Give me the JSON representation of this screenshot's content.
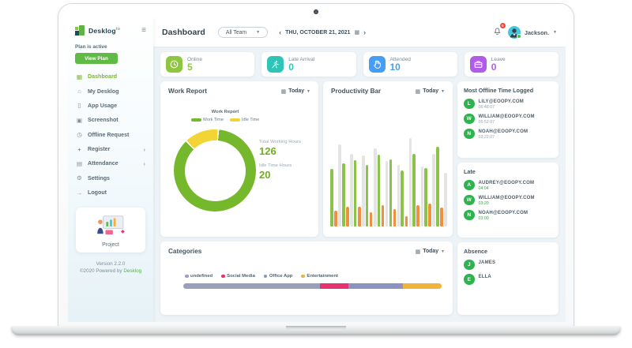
{
  "colors": {
    "app_background": "#edf3f6",
    "card_background": "#ffffff",
    "accent_green": "#7cb82e",
    "button_green": "#5fba46",
    "avatar_green": "#2fb34f",
    "badge_red": "#e84a42",
    "avatar_cyan": "#45c7dd"
  },
  "sidebar": {
    "logo": {
      "name": "Desklog",
      "suffix": "io"
    },
    "plan_status": "Plan is active",
    "view_plan_label": "View Plan",
    "items": [
      {
        "label": "Dashboard",
        "icon": "dashboard-icon",
        "active": true,
        "has_submenu": false
      },
      {
        "label": "My Desklog",
        "icon": "home-icon",
        "active": false,
        "has_submenu": false
      },
      {
        "label": "App Usage",
        "icon": "app-usage-icon",
        "active": false,
        "has_submenu": false
      },
      {
        "label": "Screenshot",
        "icon": "screenshot-icon",
        "active": false,
        "has_submenu": false
      },
      {
        "label": "Offline Request",
        "icon": "offline-request-icon",
        "active": false,
        "has_submenu": false
      },
      {
        "label": "Register",
        "icon": "register-icon",
        "active": false,
        "has_submenu": true
      },
      {
        "label": "Attendance",
        "icon": "attendance-icon",
        "active": false,
        "has_submenu": true
      },
      {
        "label": "Settings",
        "icon": "settings-icon",
        "active": false,
        "has_submenu": false
      },
      {
        "label": "Logout",
        "icon": "logout-icon",
        "active": false,
        "has_submenu": false
      }
    ],
    "project_label": "Project",
    "version": "Version 2.2.0",
    "copyright_prefix": "©2020 Powered by",
    "copyright_brand": "Desklog"
  },
  "header": {
    "title": "Dashboard",
    "team_selector": "All Team",
    "date": "THU, OCTOBER 21, 2021",
    "notification_count": "0",
    "user_name": "Jackson."
  },
  "stats": [
    {
      "label": "Online",
      "value": "5",
      "color": "#8dc63f",
      "icon": "clock-icon"
    },
    {
      "label": "Late Arrival",
      "value": "0",
      "color": "#2ec5b6",
      "icon": "runner-icon"
    },
    {
      "label": "Attended",
      "value": "10",
      "color": "#459df5",
      "icon": "hand-icon"
    },
    {
      "label": "Leave",
      "value": "0",
      "color": "#b15ce8",
      "icon": "briefcase-icon"
    }
  ],
  "panels": {
    "work_report": {
      "title": "Work Report",
      "filter_label": "Today",
      "chart_title": "Work Report",
      "totals": [
        {
          "label": "Total Working Hours",
          "value": "126"
        },
        {
          "label": "Idle Time Hours",
          "value": "20"
        }
      ]
    },
    "productivity": {
      "title": "Productivity Bar",
      "filter_label": "Today"
    },
    "categories": {
      "title": "Categories",
      "filter_label": "Today"
    },
    "most_offline": {
      "title": "Most Offline Time Logged",
      "items": [
        {
          "initial": "L",
          "email": "LILY@EOOPY.COM",
          "time": "06:48:07"
        },
        {
          "initial": "W",
          "email": "WILLIAM@EOOPY.COM",
          "time": "05:52:07"
        },
        {
          "initial": "N",
          "email": "NOAH@EOOPY.COM",
          "time": "03:22:07"
        }
      ]
    },
    "late": {
      "title": "Late",
      "items": [
        {
          "initial": "A",
          "email": "AUDREY@EOOPY.COM",
          "time": "04:04"
        },
        {
          "initial": "W",
          "email": "WILLIAM@EOOPY.COM",
          "time": "03:20"
        },
        {
          "initial": "N",
          "email": "NOAH@EOOPY.COM",
          "time": "03:00"
        }
      ]
    },
    "absence": {
      "title": "Absence",
      "items": [
        {
          "initial": "J",
          "name": "JAMES"
        },
        {
          "initial": "E",
          "name": "ELLA"
        }
      ]
    }
  },
  "chart_data": [
    {
      "type": "pie",
      "donut": true,
      "title": "Work Report",
      "labels": [
        "Work Time",
        "Idle Time"
      ],
      "values": [
        126,
        20
      ],
      "colors": [
        "#76b82c",
        "#f2d535"
      ],
      "legend_position": "top",
      "annotations": [
        "Total Working Hours 126",
        "Idle Time Hours 20"
      ]
    },
    {
      "type": "bar",
      "title": "Productivity Bar",
      "categories": [
        "1",
        "2",
        "3",
        "4",
        "5",
        "6",
        "7",
        "8",
        "9",
        "10"
      ],
      "series": [
        {
          "name": "green",
          "color": "#8bc34a",
          "values": [
            62,
            68,
            71,
            66,
            77,
            72,
            60,
            78,
            63,
            86
          ]
        },
        {
          "name": "orange",
          "color": "#f08f3e",
          "values": [
            17,
            21,
            21,
            15,
            23,
            19,
            11,
            23,
            25,
            20
          ]
        },
        {
          "name": "grey",
          "color": "#e4e4e4",
          "values": [
            88,
            78,
            76,
            84,
            70,
            66,
            95,
            64,
            78,
            58
          ]
        }
      ],
      "ylim": [
        0,
        100
      ],
      "grid": false,
      "legend_position": "none",
      "axis_labels_visible": false
    },
    {
      "type": "bar",
      "variant": "horizontal-stacked",
      "title": "Categories",
      "segments": [
        {
          "label": "undefined",
          "value": 53,
          "color": "#9b9fba"
        },
        {
          "label": "Social Media",
          "value": 11,
          "color": "#e73270"
        },
        {
          "label": "Office App",
          "value": 21,
          "color": "#8d92c0"
        },
        {
          "label": "Entertainment",
          "value": 15,
          "color": "#f1b33a"
        }
      ],
      "legend_position": "top"
    }
  ]
}
